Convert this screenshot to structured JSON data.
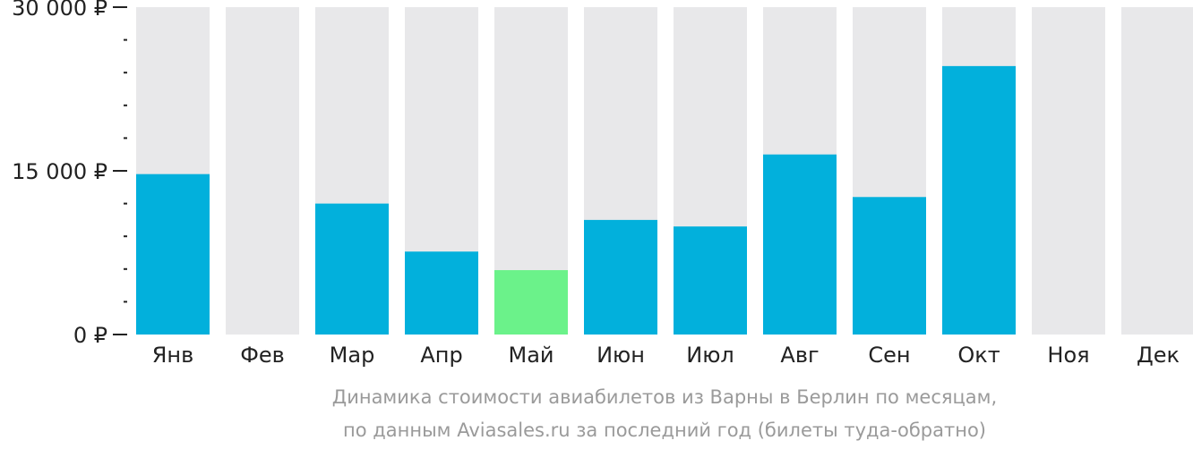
{
  "chart_data": {
    "type": "bar",
    "categories": [
      "Янв",
      "Фев",
      "Мар",
      "Апр",
      "Май",
      "Июн",
      "Июл",
      "Авг",
      "Сен",
      "Окт",
      "Ноя",
      "Дек"
    ],
    "values": [
      14700,
      null,
      12000,
      7600,
      5900,
      10500,
      9900,
      16500,
      12600,
      24600,
      null,
      null
    ],
    "ylim": [
      0,
      30000
    ],
    "yticks": [
      {
        "value": 0,
        "label": "0 ₽"
      },
      {
        "value": 15000,
        "label": "15 000 ₽"
      },
      {
        "value": 30000,
        "label": "30 000 ₽"
      }
    ],
    "minor_tick_step": 3000,
    "highlight_index": 4,
    "title": "",
    "xlabel": "",
    "ylabel": "",
    "grid": false,
    "colors": {
      "bar": "#02b0dc",
      "highlight": "#6bf28a",
      "background_bar": "#e8e8ea",
      "axis": "#222222"
    }
  },
  "caption": {
    "line1": "Динамика стоимости авиабилетов из Варны в Берлин по месяцам,",
    "line2": "по данным Aviasales.ru за последний год (билеты туда-обратно)"
  }
}
